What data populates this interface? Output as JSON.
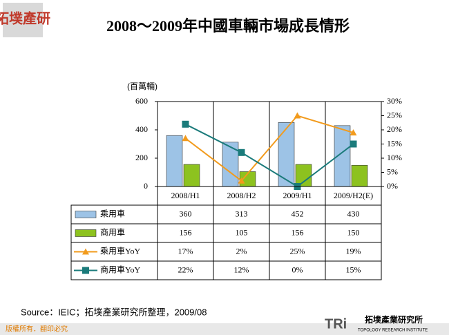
{
  "brand": "拓墣產研",
  "chart_data": {
    "type": "bar",
    "title": "2008～2009年中國車輛市場成長情形",
    "y_label": "(百萬輛)",
    "categories": [
      "2008/H1",
      "2008/H2",
      "2009/H1",
      "2009/H2(E)"
    ],
    "series": [
      {
        "name": "乘用車",
        "type": "bar",
        "color": "#9dc3e6",
        "values": [
          360,
          313,
          452,
          430
        ]
      },
      {
        "name": "商用車",
        "type": "bar",
        "color": "#8dc21f",
        "values": [
          156,
          105,
          156,
          150
        ]
      },
      {
        "name": "乘用車YoY",
        "type": "line",
        "axis": "y2",
        "color": "#f29b1d",
        "marker": "triangle",
        "values": [
          17,
          2,
          25,
          19
        ],
        "value_labels": [
          "17%",
          "2%",
          "25%",
          "19%"
        ]
      },
      {
        "name": "商用車YoY",
        "type": "line",
        "axis": "y2",
        "color": "#1b7b7b",
        "marker": "square",
        "values": [
          22,
          12,
          0,
          15
        ],
        "value_labels": [
          "22%",
          "12%",
          "0%",
          "15%"
        ]
      }
    ],
    "ylim": [
      0,
      600
    ],
    "yticks": [
      0,
      200,
      400,
      600
    ],
    "y2lim": [
      0,
      30
    ],
    "y2ticks": [
      {
        "value": 0,
        "label": "0%"
      },
      {
        "value": 5,
        "label": "5%"
      },
      {
        "value": 10,
        "label": "10%"
      },
      {
        "value": 15,
        "label": "15%"
      },
      {
        "value": 20,
        "label": "20%"
      },
      {
        "value": 25,
        "label": "25%"
      },
      {
        "value": 30,
        "label": "30%"
      }
    ],
    "data_table": true
  },
  "source": "Source：IEIC；拓墣產業研究所整理，2009/08",
  "footer": {
    "copyright": "版權所有．翻印必究",
    "logo": "TRi",
    "company": "拓墣產業研究所",
    "company_en": "TOPOLOGY RESEARCH INSTITUTE"
  }
}
